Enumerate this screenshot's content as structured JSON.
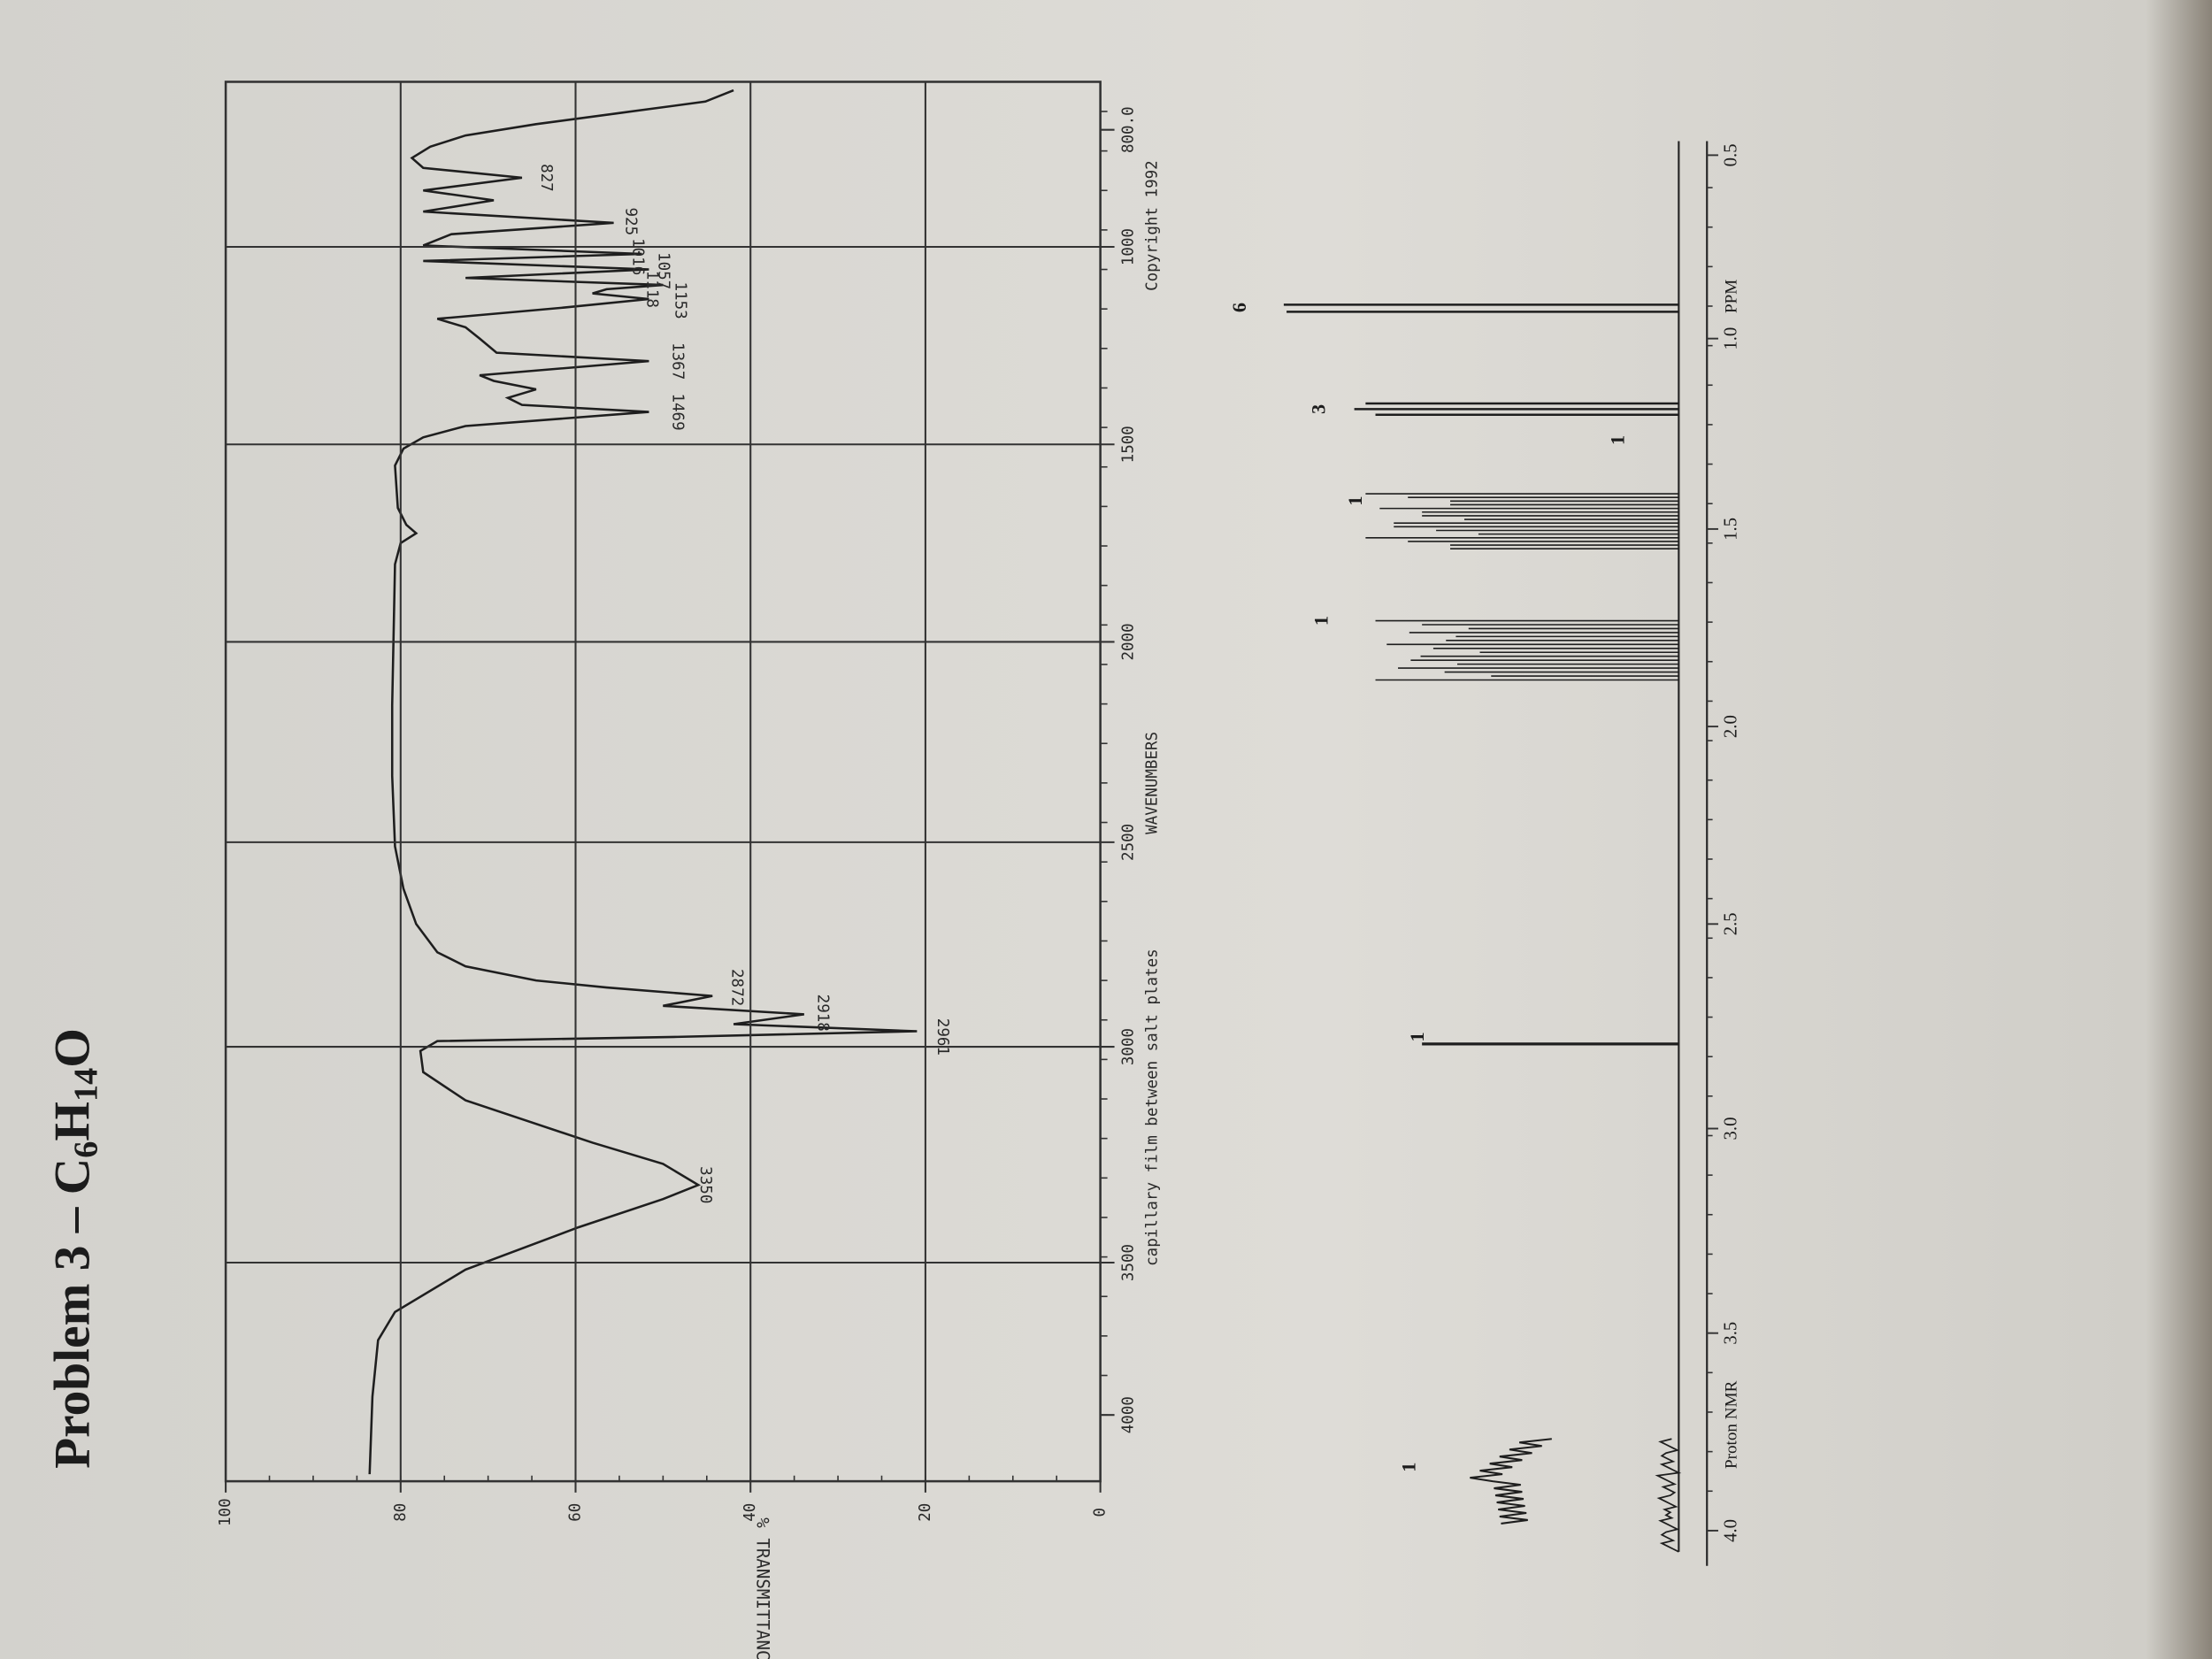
{
  "title": [
    "Problem 3 – C",
    "6",
    "H",
    "14",
    "O"
  ],
  "ir": {
    "y_axis_label": "% TRANSMITTANCE",
    "y_ticks": [
      "100",
      "80",
      "60",
      "40",
      "20",
      "0"
    ],
    "x_ticks": [
      "4000",
      "3500",
      "3000",
      "2500",
      "2000",
      "1500",
      "1000",
      "800.0"
    ],
    "x_axis_label": "WAVENUMBERS",
    "note": "capillary film between salt plates",
    "copyright": "Copyright 1992",
    "peaks": [
      "3350",
      "2961",
      "2918",
      "2872",
      "1469",
      "1367",
      "1153",
      "1118",
      "1057",
      "1016",
      "925",
      "827"
    ]
  },
  "nmr": {
    "x_ticks": [
      "4.0",
      "3.5",
      "3.0",
      "2.5",
      "2.0",
      "1.5",
      "1.0",
      "0.5"
    ],
    "instrument": "Proton NMR",
    "unit": "PPM",
    "integrations": [
      "1",
      "1",
      "1",
      "1",
      "1",
      "3",
      "6"
    ]
  }
}
